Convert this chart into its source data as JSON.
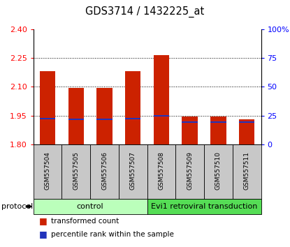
{
  "title": "GDS3714 / 1432225_at",
  "samples": [
    "GSM557504",
    "GSM557505",
    "GSM557506",
    "GSM557507",
    "GSM557508",
    "GSM557509",
    "GSM557510",
    "GSM557511"
  ],
  "bar_values": [
    2.18,
    2.095,
    2.095,
    2.18,
    2.265,
    1.945,
    1.945,
    1.93
  ],
  "blue_marker_values": [
    1.935,
    1.93,
    1.93,
    1.935,
    1.95,
    1.915,
    1.915,
    1.915
  ],
  "baseline": 1.8,
  "ylim_left": [
    1.8,
    2.4
  ],
  "ylim_right": [
    0,
    100
  ],
  "yticks_left": [
    1.8,
    1.95,
    2.1,
    2.25,
    2.4
  ],
  "yticks_right": [
    0,
    25,
    50,
    75,
    100
  ],
  "ytick_labels_right": [
    "0",
    "25",
    "50",
    "75",
    "100%"
  ],
  "bar_color": "#CC2200",
  "blue_color": "#2233BB",
  "bar_width": 0.55,
  "protocol_labels": [
    "control",
    "Evi1 retroviral transduction"
  ],
  "protocol_color_light": "#BBFFBB",
  "protocol_color_dark": "#55DD55",
  "label_box_color": "#C8C8C8",
  "grid_dotted_at": [
    1.95,
    2.1,
    2.25
  ]
}
